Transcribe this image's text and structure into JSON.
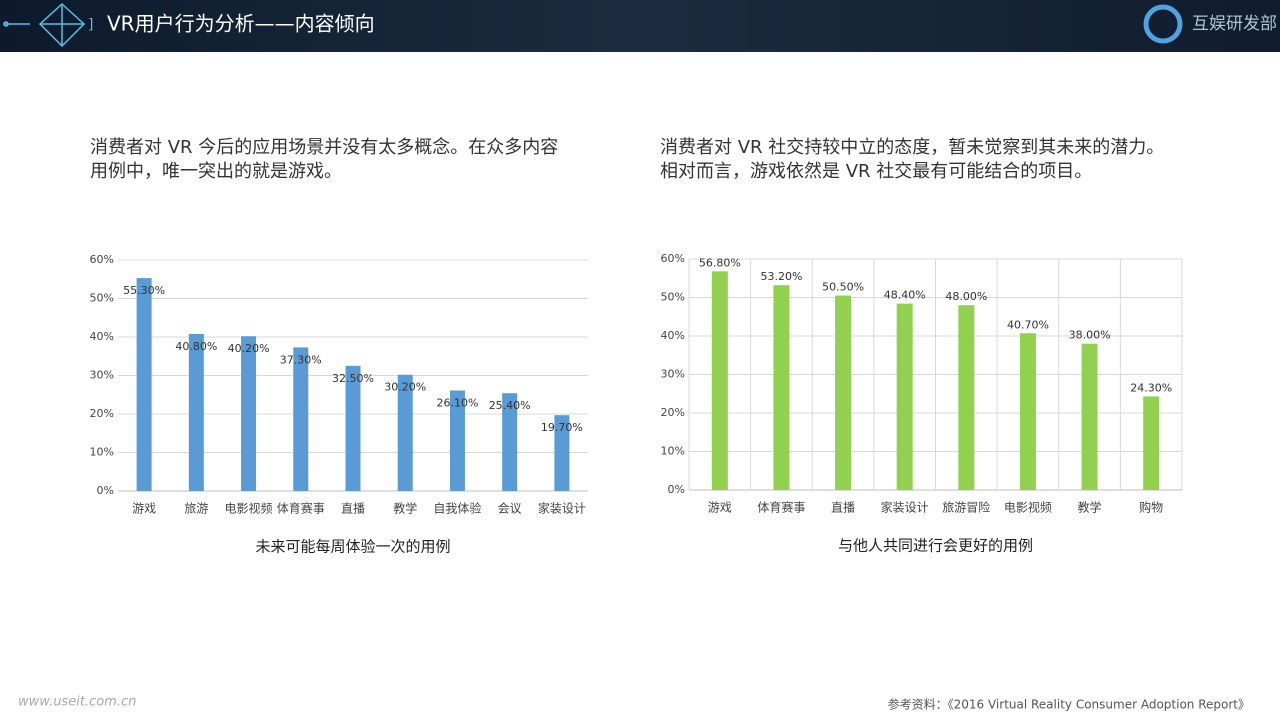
{
  "header": {
    "title": "VR用户行为分析——内容倾向",
    "logo": "互娱研发部"
  },
  "texts": [
    {
      "lines": [
        "消费者对 VR 今后的应用场景并没有太多概念。在众多内容",
        "用例中，唯一突出的就是游戏。"
      ]
    },
    {
      "lines": [
        "消费者对 VR 社交持较中立的态度，暂未觉察到其未来的潜力。",
        "相对而言，游戏依然是 VR 社交最有可能结合的项目。"
      ]
    }
  ],
  "chart_data": [
    {
      "type": "bar",
      "title": "未来可能每周体验一次的用例",
      "categories": [
        "游戏",
        "旅游",
        "电影视频",
        "体育赛事",
        "直播",
        "教学",
        "自我体验",
        "会议",
        "家装设计"
      ],
      "values": [
        55.3,
        40.8,
        40.2,
        37.3,
        32.5,
        30.2,
        26.1,
        25.4,
        19.7
      ],
      "value_labels": [
        "55.30%",
        "40.80%",
        "40.20%",
        "37.30%",
        "32.50%",
        "30.20%",
        "26.10%",
        "25.40%",
        "19.70%"
      ],
      "color": "#5b9bd5",
      "ylim": [
        0,
        60
      ],
      "yticks": [
        {
          "value": 0,
          "label": "0%"
        },
        {
          "value": 10,
          "label": "10%"
        },
        {
          "value": 20,
          "label": "20%"
        },
        {
          "value": 30,
          "label": "30%"
        },
        {
          "value": 40,
          "label": "40%"
        },
        {
          "value": 50,
          "label": "50%"
        },
        {
          "value": 60,
          "label": "60%"
        }
      ],
      "grid": true,
      "vertical_grid": false
    },
    {
      "type": "bar",
      "title": "与他人共同进行会更好的用例",
      "categories": [
        "游戏",
        "体育赛事",
        "直播",
        "家装设计",
        "旅游冒险",
        "电影视频",
        "教学",
        "购物"
      ],
      "values": [
        56.8,
        53.2,
        50.5,
        48.4,
        48.0,
        40.7,
        38.0,
        24.3
      ],
      "value_labels": [
        "56.80%",
        "53.20%",
        "50.50%",
        "48.40%",
        "48.00%",
        "40.70%",
        "38.00%",
        "24.30%"
      ],
      "color": "#92d050",
      "ylim": [
        0,
        60
      ],
      "yticks": [
        {
          "value": 0,
          "label": "0%"
        },
        {
          "value": 10,
          "label": "10%"
        },
        {
          "value": 20,
          "label": "20%"
        },
        {
          "value": 30,
          "label": "30%"
        },
        {
          "value": 40,
          "label": "40%"
        },
        {
          "value": 50,
          "label": "50%"
        },
        {
          "value": 60,
          "label": "60%"
        }
      ],
      "grid": true,
      "vertical_grid": true
    }
  ],
  "source": "参考资料：《2016 Virtual Reality Consumer Adoption Report》",
  "watermark": "www.useit.com.cn"
}
